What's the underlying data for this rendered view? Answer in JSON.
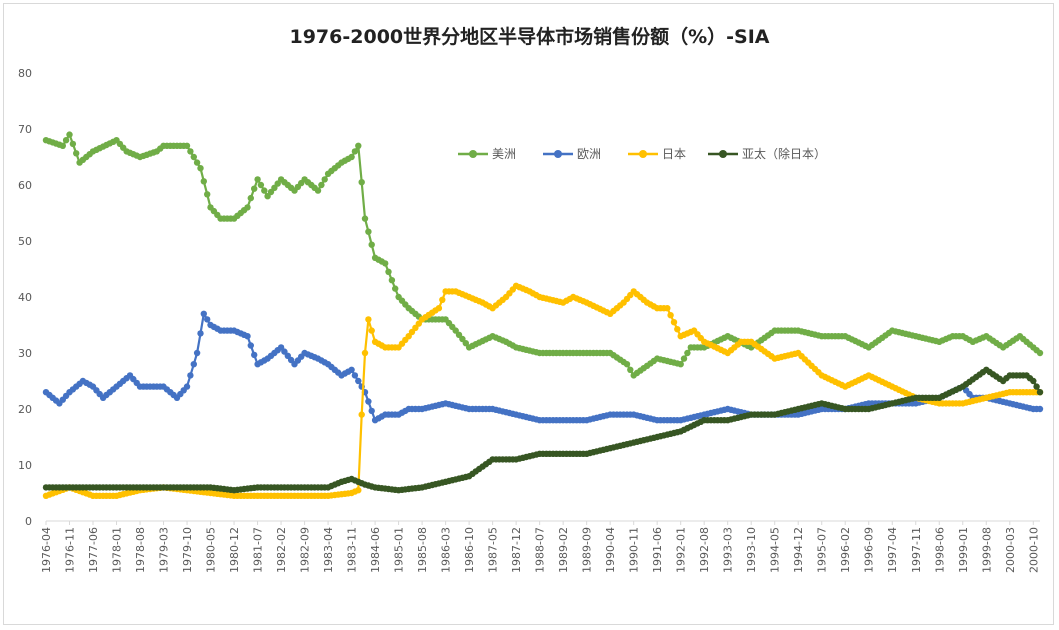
{
  "chart_data": {
    "type": "line",
    "title": "1976-2000世界分地区半导体市场销售份额（%）-SIA",
    "xlabel": "",
    "ylabel": "",
    "ylim": [
      0,
      80
    ],
    "yticks": [
      0,
      10,
      20,
      30,
      40,
      50,
      60,
      70,
      80
    ],
    "grid": false,
    "legend_position": "top-center",
    "x_tick_labels": [
      "1976-04",
      "1976-11",
      "1977-06",
      "1978-01",
      "1978-08",
      "1979-03",
      "1979-10",
      "1980-05",
      "1980-12",
      "1981-07",
      "1982-02",
      "1982-09",
      "1983-04",
      "1983-11",
      "1984-06",
      "1985-01",
      "1985-08",
      "1986-03",
      "1986-10",
      "1987-05",
      "1987-12",
      "1988-07",
      "1989-02",
      "1989-09",
      "1990-04",
      "1990-11",
      "1991-06",
      "1992-01",
      "1992-08",
      "1993-03",
      "1993-10",
      "1994-05",
      "1994-12",
      "1995-07",
      "1996-02",
      "1996-09",
      "1997-04",
      "1997-11",
      "1998-06",
      "1999-01",
      "1999-08",
      "2000-03",
      "2000-10"
    ],
    "x_start": "1976-04",
    "x_end": "2000-12",
    "series": [
      {
        "name": "美洲",
        "color": "#70ad47",
        "points": [
          [
            "1976-04",
            68
          ],
          [
            "1976-09",
            67
          ],
          [
            "1976-11",
            69
          ],
          [
            "1977-02",
            64
          ],
          [
            "1977-06",
            66
          ],
          [
            "1978-01",
            68
          ],
          [
            "1978-04",
            66
          ],
          [
            "1978-08",
            65
          ],
          [
            "1979-01",
            66
          ],
          [
            "1979-03",
            67
          ],
          [
            "1979-10",
            67
          ],
          [
            "1980-02",
            63
          ],
          [
            "1980-05",
            56
          ],
          [
            "1980-08",
            54
          ],
          [
            "1980-12",
            54
          ],
          [
            "1981-04",
            56
          ],
          [
            "1981-07",
            61
          ],
          [
            "1981-10",
            58
          ],
          [
            "1982-02",
            61
          ],
          [
            "1982-06",
            59
          ],
          [
            "1982-09",
            61
          ],
          [
            "1983-01",
            59
          ],
          [
            "1983-04",
            62
          ],
          [
            "1983-08",
            64
          ],
          [
            "1983-11",
            65
          ],
          [
            "1984-01",
            67
          ],
          [
            "1984-03",
            54
          ],
          [
            "1984-06",
            47
          ],
          [
            "1984-09",
            46
          ],
          [
            "1985-01",
            40
          ],
          [
            "1985-04",
            38
          ],
          [
            "1985-08",
            36
          ],
          [
            "1986-03",
            36
          ],
          [
            "1986-06",
            34
          ],
          [
            "1986-10",
            31
          ],
          [
            "1987-05",
            33
          ],
          [
            "1987-09",
            32
          ],
          [
            "1987-12",
            31
          ],
          [
            "1988-07",
            30
          ],
          [
            "1989-02",
            30
          ],
          [
            "1989-09",
            30
          ],
          [
            "1990-04",
            30
          ],
          [
            "1990-09",
            28
          ],
          [
            "1990-11",
            26
          ],
          [
            "1991-06",
            29
          ],
          [
            "1992-01",
            28
          ],
          [
            "1992-04",
            31
          ],
          [
            "1992-08",
            31
          ],
          [
            "1993-03",
            33
          ],
          [
            "1993-10",
            31
          ],
          [
            "1994-05",
            34
          ],
          [
            "1994-12",
            34
          ],
          [
            "1995-07",
            33
          ],
          [
            "1996-02",
            33
          ],
          [
            "1996-09",
            31
          ],
          [
            "1997-04",
            34
          ],
          [
            "1997-11",
            33
          ],
          [
            "1998-06",
            32
          ],
          [
            "1998-10",
            33
          ],
          [
            "1999-01",
            33
          ],
          [
            "1999-04",
            32
          ],
          [
            "1999-08",
            33
          ],
          [
            "2000-01",
            31
          ],
          [
            "2000-06",
            33
          ],
          [
            "2000-10",
            31
          ],
          [
            "2000-12",
            30
          ]
        ]
      },
      {
        "name": "欧洲",
        "color": "#4472c4",
        "points": [
          [
            "1976-04",
            23
          ],
          [
            "1976-08",
            21
          ],
          [
            "1976-11",
            23
          ],
          [
            "1977-03",
            25
          ],
          [
            "1977-06",
            24
          ],
          [
            "1977-09",
            22
          ],
          [
            "1978-01",
            24
          ],
          [
            "1978-05",
            26
          ],
          [
            "1978-08",
            24
          ],
          [
            "1979-03",
            24
          ],
          [
            "1979-07",
            22
          ],
          [
            "1979-10",
            24
          ],
          [
            "1980-01",
            30
          ],
          [
            "1980-03",
            37
          ],
          [
            "1980-05",
            35
          ],
          [
            "1980-08",
            34
          ],
          [
            "1980-12",
            34
          ],
          [
            "1981-04",
            33
          ],
          [
            "1981-07",
            28
          ],
          [
            "1981-10",
            29
          ],
          [
            "1982-02",
            31
          ],
          [
            "1982-06",
            28
          ],
          [
            "1982-09",
            30
          ],
          [
            "1983-01",
            29
          ],
          [
            "1983-04",
            28
          ],
          [
            "1983-08",
            26
          ],
          [
            "1983-11",
            27
          ],
          [
            "1984-03",
            23
          ],
          [
            "1984-06",
            18
          ],
          [
            "1984-09",
            19
          ],
          [
            "1985-01",
            19
          ],
          [
            "1985-04",
            20
          ],
          [
            "1985-08",
            20
          ],
          [
            "1986-03",
            21
          ],
          [
            "1986-10",
            20
          ],
          [
            "1987-05",
            20
          ],
          [
            "1987-12",
            19
          ],
          [
            "1988-07",
            18
          ],
          [
            "1989-02",
            18
          ],
          [
            "1989-09",
            18
          ],
          [
            "1990-04",
            19
          ],
          [
            "1990-11",
            19
          ],
          [
            "1991-06",
            18
          ],
          [
            "1992-01",
            18
          ],
          [
            "1992-08",
            19
          ],
          [
            "1993-03",
            20
          ],
          [
            "1993-10",
            19
          ],
          [
            "1994-05",
            19
          ],
          [
            "1994-12",
            19
          ],
          [
            "1995-07",
            20
          ],
          [
            "1996-02",
            20
          ],
          [
            "1996-09",
            21
          ],
          [
            "1997-04",
            21
          ],
          [
            "1997-11",
            21
          ],
          [
            "1998-06",
            22
          ],
          [
            "1999-01",
            24
          ],
          [
            "1999-04",
            22
          ],
          [
            "1999-08",
            22
          ],
          [
            "2000-03",
            21
          ],
          [
            "2000-10",
            20
          ],
          [
            "2000-12",
            20
          ]
        ]
      },
      {
        "name": "日本",
        "color": "#ffc000",
        "points": [
          [
            "1976-04",
            4.5
          ],
          [
            "1976-11",
            6
          ],
          [
            "1977-06",
            4.5
          ],
          [
            "1978-01",
            4.5
          ],
          [
            "1978-08",
            5.5
          ],
          [
            "1979-03",
            6
          ],
          [
            "1979-10",
            5.5
          ],
          [
            "1980-05",
            5
          ],
          [
            "1980-12",
            4.5
          ],
          [
            "1981-07",
            4.5
          ],
          [
            "1982-02",
            4.5
          ],
          [
            "1982-09",
            4.5
          ],
          [
            "1983-04",
            4.5
          ],
          [
            "1983-11",
            5
          ],
          [
            "1984-01",
            5.5
          ],
          [
            "1984-02",
            19
          ],
          [
            "1984-03",
            30
          ],
          [
            "1984-04",
            36
          ],
          [
            "1984-06",
            32
          ],
          [
            "1984-09",
            31
          ],
          [
            "1985-01",
            31
          ],
          [
            "1985-04",
            33
          ],
          [
            "1985-08",
            36
          ],
          [
            "1986-01",
            38
          ],
          [
            "1986-03",
            41
          ],
          [
            "1986-06",
            41
          ],
          [
            "1986-10",
            40
          ],
          [
            "1987-02",
            39
          ],
          [
            "1987-05",
            38
          ],
          [
            "1987-09",
            40
          ],
          [
            "1987-12",
            42
          ],
          [
            "1988-04",
            41
          ],
          [
            "1988-07",
            40
          ],
          [
            "1989-02",
            39
          ],
          [
            "1989-05",
            40
          ],
          [
            "1989-09",
            39
          ],
          [
            "1990-04",
            37
          ],
          [
            "1990-08",
            39
          ],
          [
            "1990-11",
            41
          ],
          [
            "1991-03",
            39
          ],
          [
            "1991-06",
            38
          ],
          [
            "1991-09",
            38
          ],
          [
            "1992-01",
            33
          ],
          [
            "1992-05",
            34
          ],
          [
            "1992-08",
            32
          ],
          [
            "1993-03",
            30
          ],
          [
            "1993-07",
            32
          ],
          [
            "1993-10",
            32
          ],
          [
            "1994-05",
            29
          ],
          [
            "1994-12",
            30
          ],
          [
            "1995-07",
            26
          ],
          [
            "1996-02",
            24
          ],
          [
            "1996-09",
            26
          ],
          [
            "1997-04",
            24
          ],
          [
            "1997-11",
            22
          ],
          [
            "1998-06",
            21
          ],
          [
            "1999-01",
            21
          ],
          [
            "1999-08",
            22
          ],
          [
            "2000-03",
            23
          ],
          [
            "2000-10",
            23
          ],
          [
            "2000-12",
            23
          ]
        ]
      },
      {
        "name": "亚太（除日本）",
        "color": "#375623",
        "points": [
          [
            "1976-04",
            6
          ],
          [
            "1976-11",
            6
          ],
          [
            "1977-06",
            6
          ],
          [
            "1978-01",
            6
          ],
          [
            "1978-08",
            6
          ],
          [
            "1979-03",
            6
          ],
          [
            "1979-10",
            6
          ],
          [
            "1980-05",
            6
          ],
          [
            "1980-12",
            5.5
          ],
          [
            "1981-07",
            6
          ],
          [
            "1982-02",
            6
          ],
          [
            "1982-09",
            6
          ],
          [
            "1983-04",
            6
          ],
          [
            "1983-08",
            7
          ],
          [
            "1983-11",
            7.5
          ],
          [
            "1984-03",
            6.5
          ],
          [
            "1984-06",
            6
          ],
          [
            "1985-01",
            5.5
          ],
          [
            "1985-08",
            6
          ],
          [
            "1986-03",
            7
          ],
          [
            "1986-10",
            8
          ],
          [
            "1987-05",
            11
          ],
          [
            "1987-12",
            11
          ],
          [
            "1988-07",
            12
          ],
          [
            "1989-02",
            12
          ],
          [
            "1989-09",
            12
          ],
          [
            "1990-04",
            13
          ],
          [
            "1990-11",
            14
          ],
          [
            "1991-06",
            15
          ],
          [
            "1992-01",
            16
          ],
          [
            "1992-08",
            18
          ],
          [
            "1993-03",
            18
          ],
          [
            "1993-10",
            19
          ],
          [
            "1994-05",
            19
          ],
          [
            "1994-12",
            20
          ],
          [
            "1995-07",
            21
          ],
          [
            "1996-02",
            20
          ],
          [
            "1996-09",
            20
          ],
          [
            "1997-04",
            21
          ],
          [
            "1997-11",
            22
          ],
          [
            "1998-06",
            22
          ],
          [
            "1999-01",
            24
          ],
          [
            "1999-08",
            27
          ],
          [
            "2000-01",
            25
          ],
          [
            "2000-03",
            26
          ],
          [
            "2000-08",
            26
          ],
          [
            "2000-10",
            25
          ],
          [
            "2000-12",
            23
          ]
        ]
      }
    ]
  }
}
